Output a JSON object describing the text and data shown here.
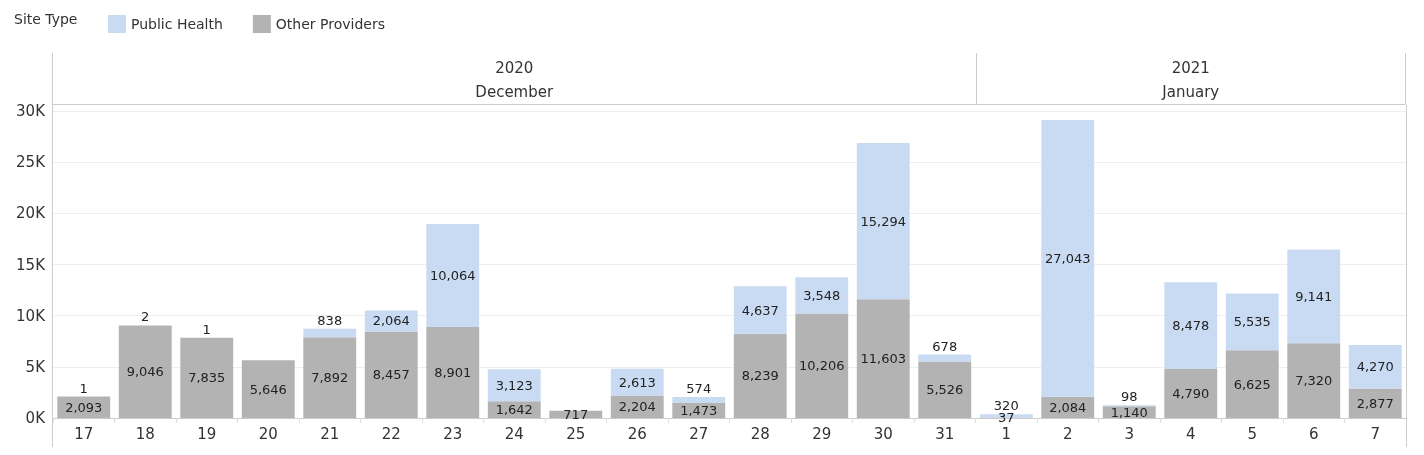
{
  "chart_data": {
    "type": "bar",
    "stacked": true,
    "legend_title": "Site Type",
    "legend": "top left",
    "categories": [
      "17",
      "18",
      "19",
      "20",
      "21",
      "22",
      "23",
      "24",
      "25",
      "26",
      "27",
      "28",
      "29",
      "30",
      "31",
      "1",
      "2",
      "3",
      "4",
      "5",
      "6",
      "7"
    ],
    "series": [
      {
        "name": "Other Providers",
        "color": "#b3b3b3",
        "values": [
          2093,
          9046,
          7835,
          5646,
          7892,
          8457,
          8901,
          1642,
          717,
          2204,
          1473,
          8239,
          10206,
          11603,
          5526,
          37,
          2084,
          1140,
          4790,
          6625,
          7320,
          2877
        ],
        "value_labels": [
          "2,093",
          "9,046",
          "7,835",
          "5,646",
          "7,892",
          "8,457",
          "8,901",
          "1,642",
          "717",
          "2,204",
          "1,473",
          "8,239",
          "10,206",
          "11,603",
          "5,526",
          "37",
          "2,084",
          "1,140",
          "4,790",
          "6,625",
          "7,320",
          "2,877"
        ]
      },
      {
        "name": "Public Health",
        "color": "#c9dbf3",
        "values": [
          1,
          2,
          1,
          null,
          838,
          2064,
          10064,
          3123,
          null,
          2613,
          574,
          4637,
          3548,
          15294,
          678,
          320,
          27043,
          98,
          8478,
          5535,
          9141,
          4270
        ],
        "value_labels": [
          "1",
          "2",
          "1",
          null,
          "838",
          "2,064",
          "10,064",
          "3,123",
          null,
          "2,613",
          "574",
          "4,637",
          "3,548",
          "15,294",
          "678",
          "320",
          "27,043",
          "98",
          "8,478",
          "5,535",
          "9,141",
          "4,270"
        ]
      }
    ],
    "grid": "y",
    "ylim": [
      0,
      30600
    ],
    "yticks": [
      {
        "value": 0,
        "label": "0K"
      },
      {
        "value": 5000,
        "label": "5K"
      },
      {
        "value": 10000,
        "label": "10K"
      },
      {
        "value": 15000,
        "label": "15K"
      },
      {
        "value": 20000,
        "label": "20K"
      },
      {
        "value": 25000,
        "label": "25K"
      },
      {
        "value": 30000,
        "label": "30K"
      }
    ],
    "annotations": [
      "2020",
      "December",
      "2021",
      "January"
    ]
  }
}
